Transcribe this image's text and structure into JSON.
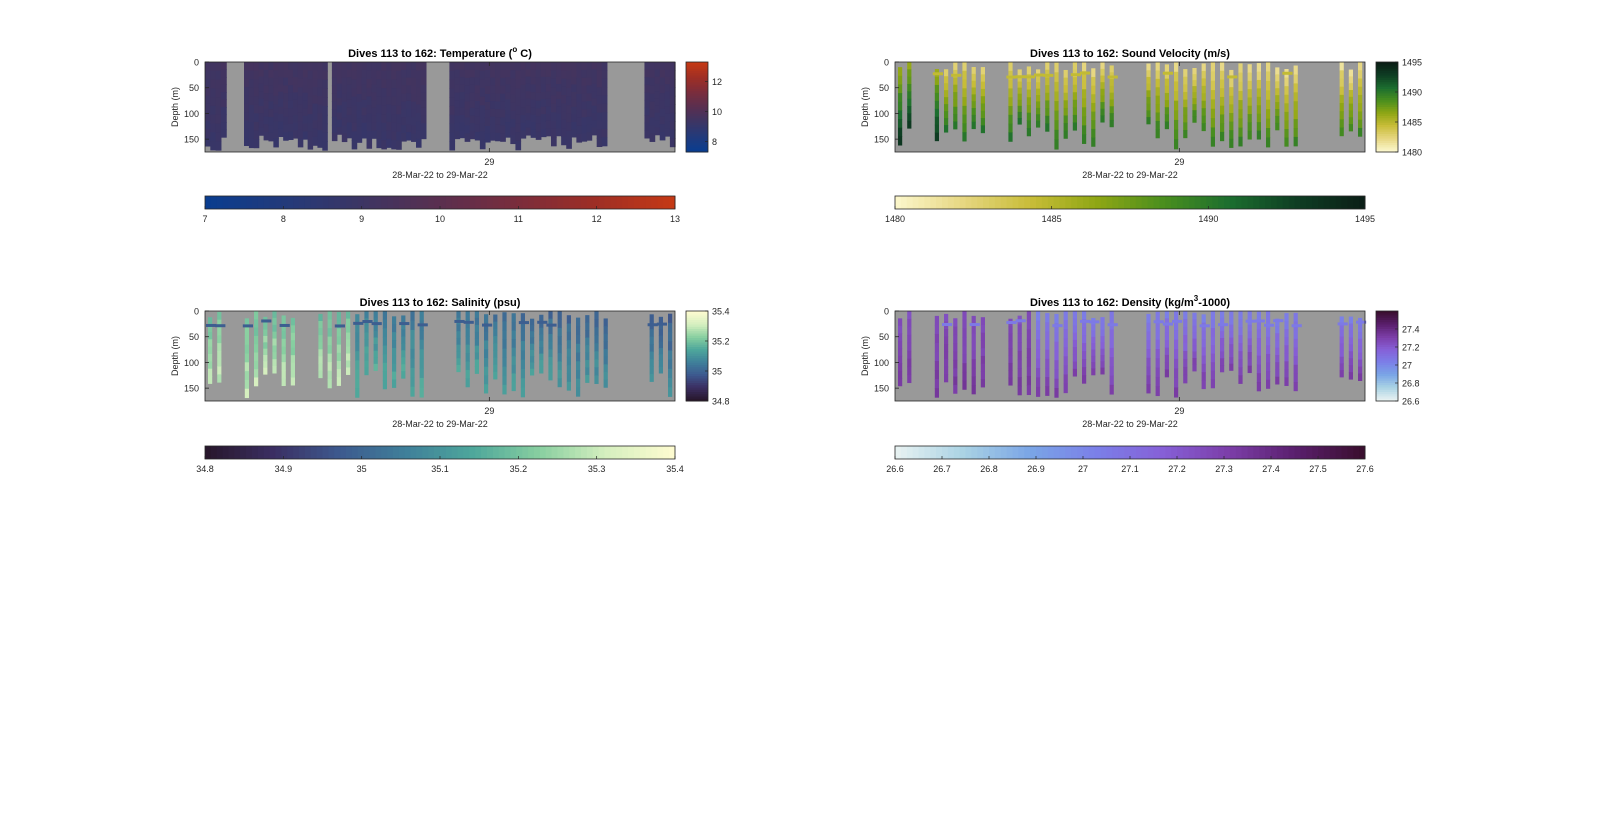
{
  "chart_data": [
    {
      "type": "heatmap",
      "title_prefix": "Dives 113 to 162: Temperature (",
      "title_sup": "o",
      "title_suffix": " C)",
      "ylabel": "Depth (m)",
      "xtick_label": "29",
      "xlabel": "28-Mar-22 to 29-Mar-22",
      "y_ticks": [
        "0",
        "50",
        "100",
        "150"
      ],
      "ylim": [
        0,
        175
      ],
      "colormap": [
        "#0a3d8f",
        "#233a7a",
        "#3d3563",
        "#5a2f4f",
        "#7a2d3c",
        "#9e2e25",
        "#c43915"
      ],
      "cbar_right_ticks": [
        "12",
        "10",
        "8"
      ],
      "cbar_bottom_ticks": [
        "7",
        "8",
        "9",
        "10",
        "11",
        "12",
        "13"
      ],
      "clim": [
        7,
        13
      ],
      "background_fill": "#2f3160"
    },
    {
      "type": "heatmap",
      "title_prefix": "Dives 113 to 162: Sound Velocity (m/s)",
      "title_sup": "",
      "title_suffix": "",
      "ylabel": "Depth (m)",
      "xtick_label": "29",
      "xlabel": "28-Mar-22 to 29-Mar-22",
      "y_ticks": [
        "0",
        "50",
        "100",
        "150"
      ],
      "ylim": [
        0,
        175
      ],
      "colormap": [
        "#fbf6c9",
        "#e6d680",
        "#c8bd38",
        "#8fa614",
        "#4a8f1e",
        "#1c6e2f",
        "#0e3e23",
        "#0b1f17"
      ],
      "cbar_right_ticks": [
        "1495",
        "1490",
        "1485",
        "1480"
      ],
      "cbar_bottom_ticks": [
        "1480",
        "1485",
        "1490",
        "1495"
      ],
      "clim": [
        1480,
        1495
      ],
      "background_fill": null
    },
    {
      "type": "heatmap",
      "title_prefix": "Dives 113 to 162: Salinity (psu)",
      "title_sup": "",
      "title_suffix": "",
      "ylabel": "Depth (m)",
      "xtick_label": "29",
      "xlabel": "28-Mar-22 to 29-Mar-22",
      "y_ticks": [
        "0",
        "50",
        "100",
        "150"
      ],
      "ylim": [
        0,
        175
      ],
      "colormap": [
        "#28172c",
        "#3b2f63",
        "#3d5a8f",
        "#3f809a",
        "#4ea79b",
        "#88cfa0",
        "#d5efbf",
        "#fdfbd0"
      ],
      "cbar_right_ticks": [
        "35.4",
        "35.2",
        "35",
        "34.8"
      ],
      "cbar_bottom_ticks": [
        "34.8",
        "34.9",
        "35",
        "35.1",
        "35.2",
        "35.3",
        "35.4"
      ],
      "clim": [
        34.8,
        35.4
      ],
      "background_fill": null
    },
    {
      "type": "heatmap",
      "title_prefix": "Dives 113 to 162: Density (kg/m",
      "title_sup": "3",
      "title_suffix": "-1000)",
      "ylabel": "Depth (m)",
      "xtick_label": "29",
      "xlabel": "28-Mar-22 to 29-Mar-22",
      "y_ticks": [
        "0",
        "50",
        "100",
        "150"
      ],
      "ylim": [
        0,
        175
      ],
      "colormap": [
        "#e6f1f1",
        "#a9d2e4",
        "#7aa5e6",
        "#7b7fe8",
        "#8660d7",
        "#7c3ea8",
        "#5a1f6d",
        "#3a0f2f"
      ],
      "cbar_right_ticks": [
        "27.4",
        "27.2",
        "27",
        "26.8",
        "26.6"
      ],
      "cbar_bottom_ticks": [
        "26.6",
        "26.7",
        "26.8",
        "26.9",
        "27",
        "27.1",
        "27.2",
        "27.3",
        "27.4",
        "27.5",
        "27.6"
      ],
      "clim": [
        26.6,
        27.6
      ],
      "background_fill": null
    }
  ]
}
